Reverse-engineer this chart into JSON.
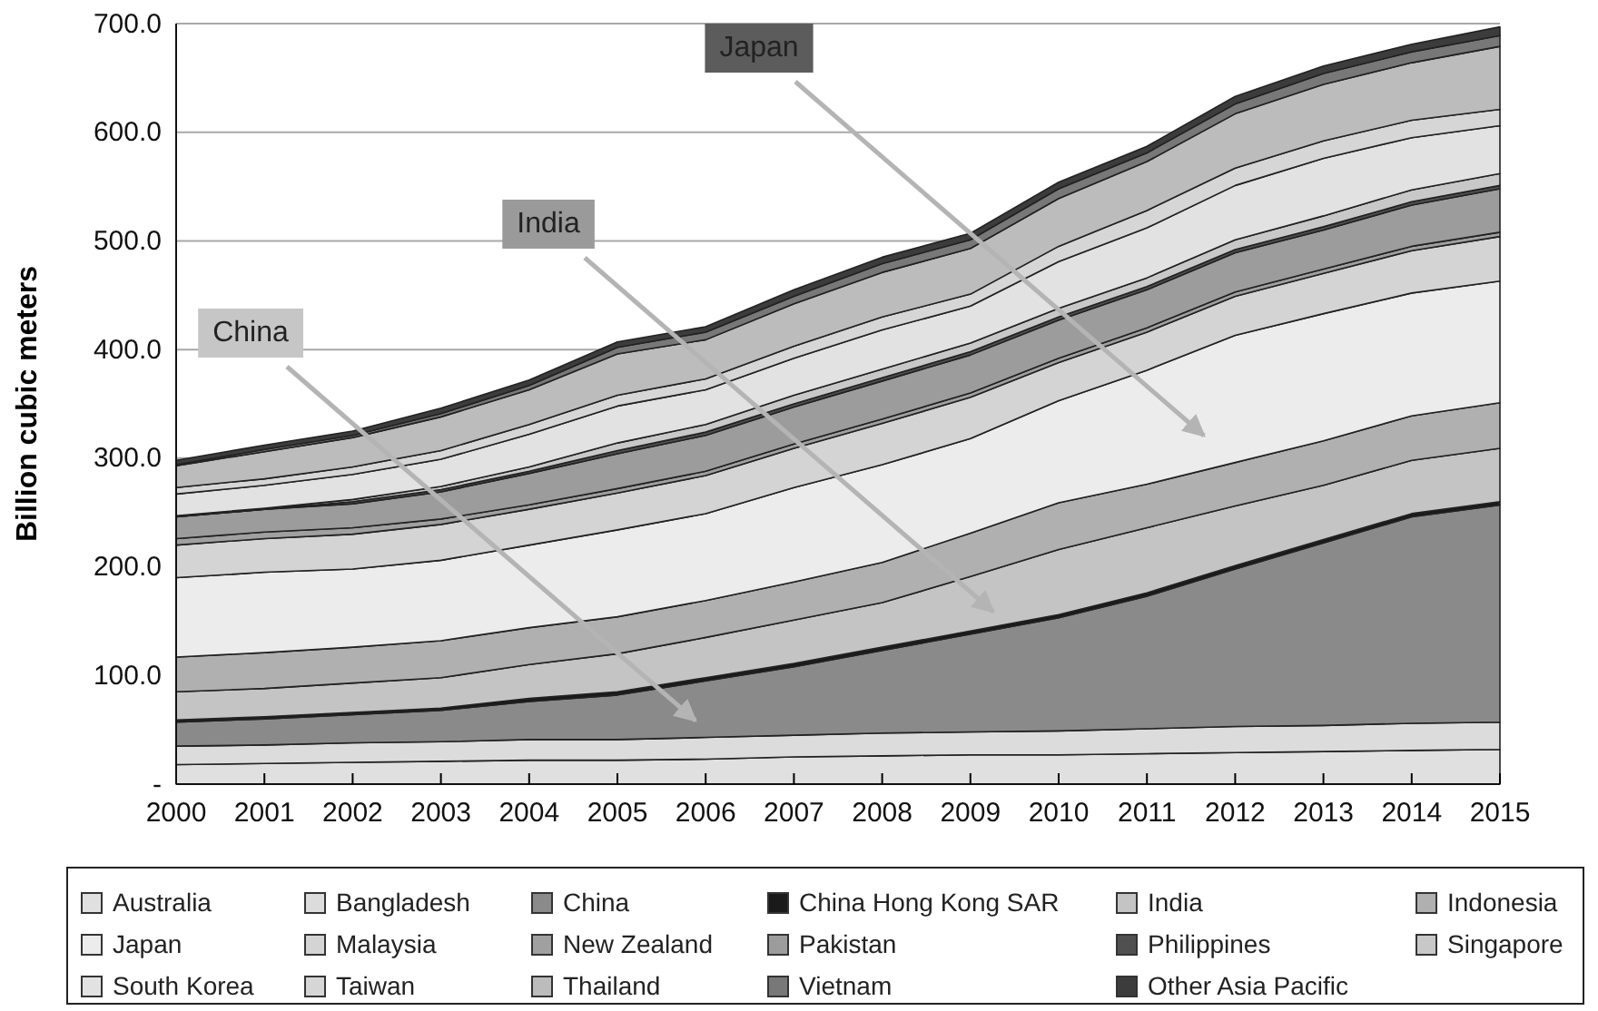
{
  "chart_data": {
    "type": "area",
    "stacked": true,
    "ylabel": "Billion cubic meters",
    "x": [
      2000,
      2001,
      2002,
      2003,
      2004,
      2005,
      2006,
      2007,
      2008,
      2009,
      2010,
      2011,
      2012,
      2013,
      2014,
      2015
    ],
    "xlim": [
      2000,
      2015
    ],
    "xticks": [
      2000,
      2001,
      2002,
      2003,
      2004,
      2005,
      2006,
      2007,
      2008,
      2009,
      2010,
      2011,
      2012,
      2013,
      2014,
      2015
    ],
    "ylim": [
      0,
      700
    ],
    "yticks": [
      {
        "value": 0,
        "label": "-"
      },
      {
        "value": 100,
        "label": "100.0"
      },
      {
        "value": 200,
        "label": "200.0"
      },
      {
        "value": 300,
        "label": "300.0"
      },
      {
        "value": 400,
        "label": "400.0"
      },
      {
        "value": 500,
        "label": "500.0"
      },
      {
        "value": 600,
        "label": "600.0"
      },
      {
        "value": 700,
        "label": "700.0"
      }
    ],
    "grid": "y",
    "legend": "bottom",
    "annotations": [
      "China",
      "India",
      "Japan"
    ],
    "series": [
      {
        "name": "Australia",
        "color": "#e0e0e0",
        "values": [
          18,
          19,
          20,
          21,
          22,
          22,
          23,
          25,
          26,
          27,
          27,
          28,
          29,
          30,
          31,
          32
        ]
      },
      {
        "name": "Bangladesh",
        "color": "#dcdcdc",
        "values": [
          17,
          17,
          18,
          18,
          19,
          19,
          20,
          20,
          21,
          21,
          22,
          23,
          24,
          24,
          25,
          25
        ]
      },
      {
        "name": "China",
        "color": "#8a8a8a",
        "values": [
          22,
          24,
          26,
          29,
          35,
          41,
          52,
          63,
          76,
          90,
          104,
          122,
          145,
          168,
          190,
          200
        ]
      },
      {
        "name": "China Hong Kong SAR",
        "color": "#1a1a1a",
        "values": [
          2,
          2,
          2,
          2,
          3,
          3,
          3,
          3,
          3,
          3,
          3,
          3,
          3,
          3,
          3,
          3
        ]
      },
      {
        "name": "India",
        "color": "#c4c4c4",
        "values": [
          26,
          26,
          27,
          28,
          31,
          35,
          37,
          40,
          41,
          50,
          60,
          60,
          55,
          50,
          49,
          49
        ]
      },
      {
        "name": "Indonesia",
        "color": "#b0b0b0",
        "values": [
          32,
          33,
          33,
          34,
          34,
          34,
          34,
          35,
          37,
          40,
          43,
          40,
          40,
          41,
          41,
          42
        ]
      },
      {
        "name": "Japan",
        "color": "#ececec",
        "values": [
          73,
          74,
          72,
          74,
          76,
          80,
          80,
          87,
          90,
          87,
          94,
          105,
          117,
          117,
          113,
          112
        ]
      },
      {
        "name": "Malaysia",
        "color": "#d4d4d4",
        "values": [
          30,
          31,
          32,
          33,
          33,
          34,
          35,
          36,
          38,
          38,
          35,
          35,
          36,
          37,
          39,
          41
        ]
      },
      {
        "name": "New Zealand",
        "color": "#a0a0a0",
        "values": [
          6,
          6,
          6,
          5,
          4,
          4,
          4,
          4,
          4,
          4,
          4,
          4,
          4,
          4,
          4,
          4
        ]
      },
      {
        "name": "Pakistan",
        "color": "#9c9c9c",
        "values": [
          20,
          21,
          22,
          25,
          29,
          32,
          33,
          34,
          35,
          35,
          35,
          35,
          36,
          36,
          38,
          40
        ]
      },
      {
        "name": "Philippines",
        "color": "#505050",
        "values": [
          0,
          0,
          2,
          2,
          2,
          3,
          3,
          3,
          3,
          3,
          3,
          3,
          3,
          3,
          3,
          3
        ]
      },
      {
        "name": "Singapore",
        "color": "#c8c8c8",
        "values": [
          1,
          1,
          2,
          3,
          4,
          7,
          7,
          8,
          8,
          8,
          8,
          8,
          9,
          10,
          11,
          11
        ]
      },
      {
        "name": "South Korea",
        "color": "#e2e2e2",
        "values": [
          20,
          21,
          23,
          25,
          30,
          34,
          32,
          34,
          36,
          34,
          43,
          46,
          50,
          53,
          48,
          44
        ]
      },
      {
        "name": "Taiwan",
        "color": "#d6d6d6",
        "values": [
          6,
          6,
          7,
          8,
          9,
          10,
          10,
          11,
          12,
          11,
          14,
          16,
          16,
          16,
          16,
          15
        ]
      },
      {
        "name": "Thailand",
        "color": "#bcbcbc",
        "values": [
          20,
          25,
          27,
          31,
          32,
          38,
          36,
          39,
          41,
          42,
          44,
          45,
          50,
          52,
          53,
          58
        ]
      },
      {
        "name": "Vietnam",
        "color": "#787878",
        "values": [
          1,
          2,
          2,
          3,
          4,
          6,
          7,
          7,
          8,
          8,
          9,
          8,
          9,
          10,
          10,
          10
        ]
      },
      {
        "name": "Other Asia Pacific",
        "color": "#3c3c3c",
        "values": [
          4,
          4,
          4,
          5,
          5,
          5,
          5,
          6,
          6,
          6,
          6,
          6,
          7,
          7,
          7,
          8
        ]
      }
    ]
  }
}
